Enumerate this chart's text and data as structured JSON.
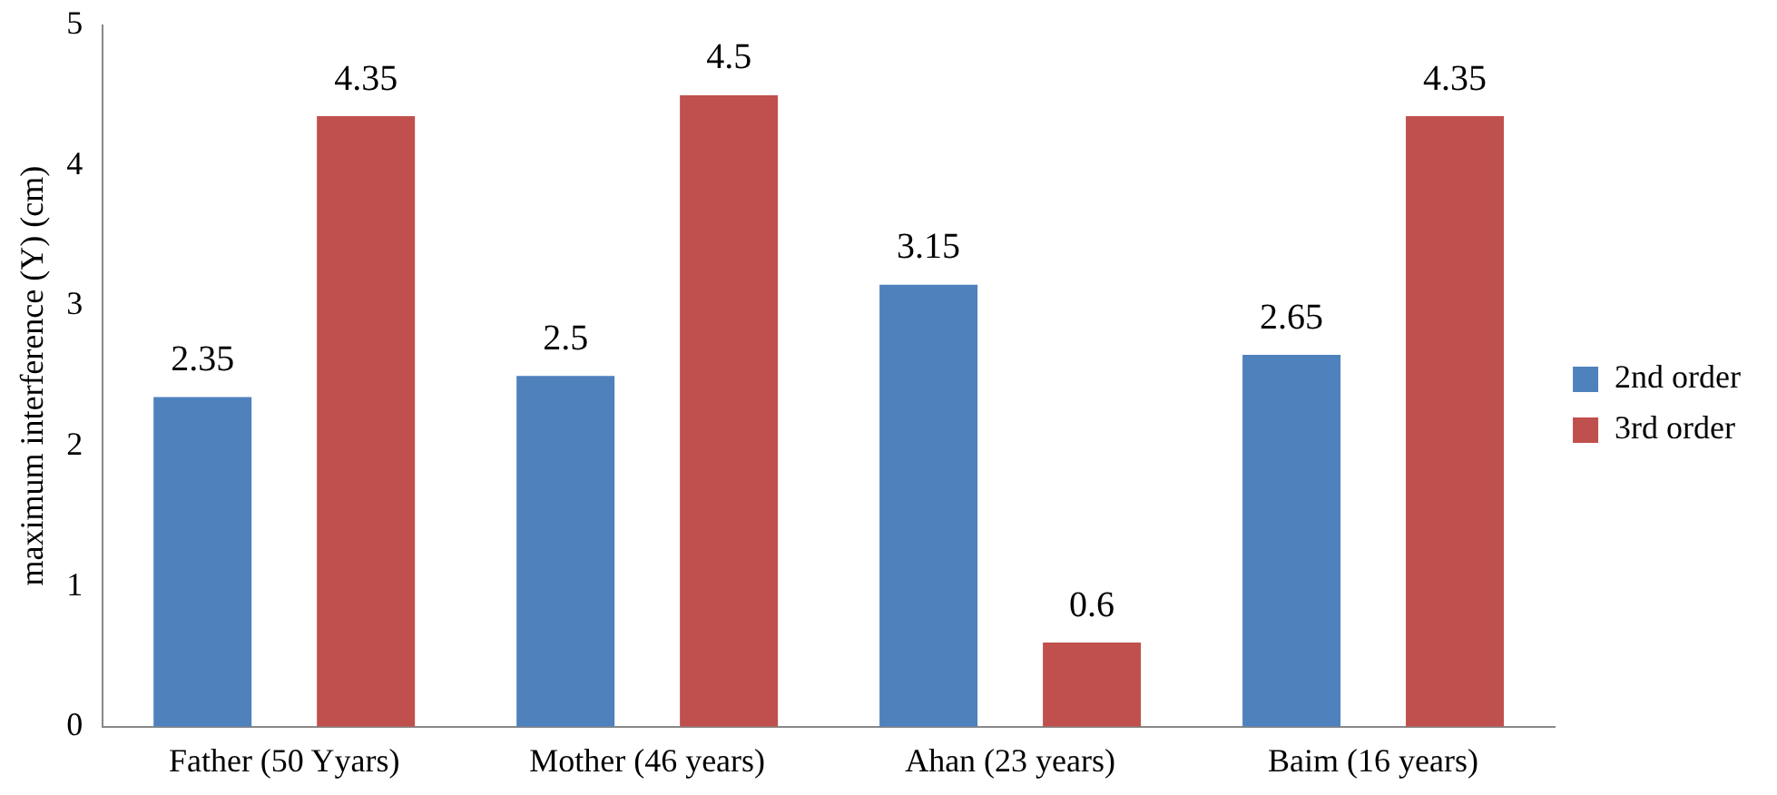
{
  "chart_data": {
    "type": "bar",
    "ylabel": "maximum interference (Y) (cm)",
    "categories": [
      "Father (50 Yyars)",
      "Mother (46 years)",
      "Ahan (23 years)",
      "Baim (16 years)"
    ],
    "series": [
      {
        "name": "2nd order",
        "color": "#4f81bd",
        "values": [
          2.35,
          2.5,
          3.15,
          2.65
        ]
      },
      {
        "name": "3rd order",
        "color": "#c0504d",
        "values": [
          4.35,
          4.5,
          0.6,
          4.35
        ]
      }
    ],
    "ylim": [
      0,
      5
    ],
    "yticks": [
      0,
      1,
      2,
      3,
      4,
      5
    ],
    "grid": false,
    "legend": "right",
    "data_labels": true
  }
}
